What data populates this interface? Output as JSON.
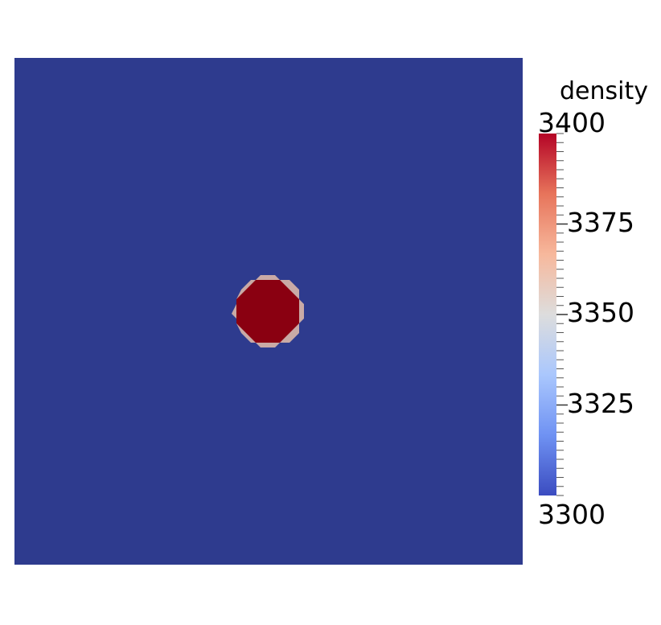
{
  "chart_data": {
    "type": "heatmap",
    "field_name": "density",
    "range": [
      3300,
      3400
    ],
    "colorbar": {
      "title": "density",
      "min_label": "3300",
      "max_label": "3400",
      "tick_values": [
        3325,
        3350,
        3375
      ],
      "tick_labels": [
        "3325",
        "3350",
        "3375"
      ],
      "placement": "right",
      "colormap": "cool-to-warm",
      "colors": [
        "#3b4cc0",
        "#6f92f3",
        "#aac7fd",
        "#dddddd",
        "#f7b89c",
        "#e7745b",
        "#b40426"
      ]
    },
    "background": {
      "value": 3300,
      "color": "#2e3b8e"
    },
    "inclusion": {
      "value": 3400,
      "color": "#8a0011",
      "edge_color": "#c9aaa6",
      "shape": "circle",
      "center": [
        0.5,
        0.5
      ],
      "radius": 0.066
    }
  }
}
